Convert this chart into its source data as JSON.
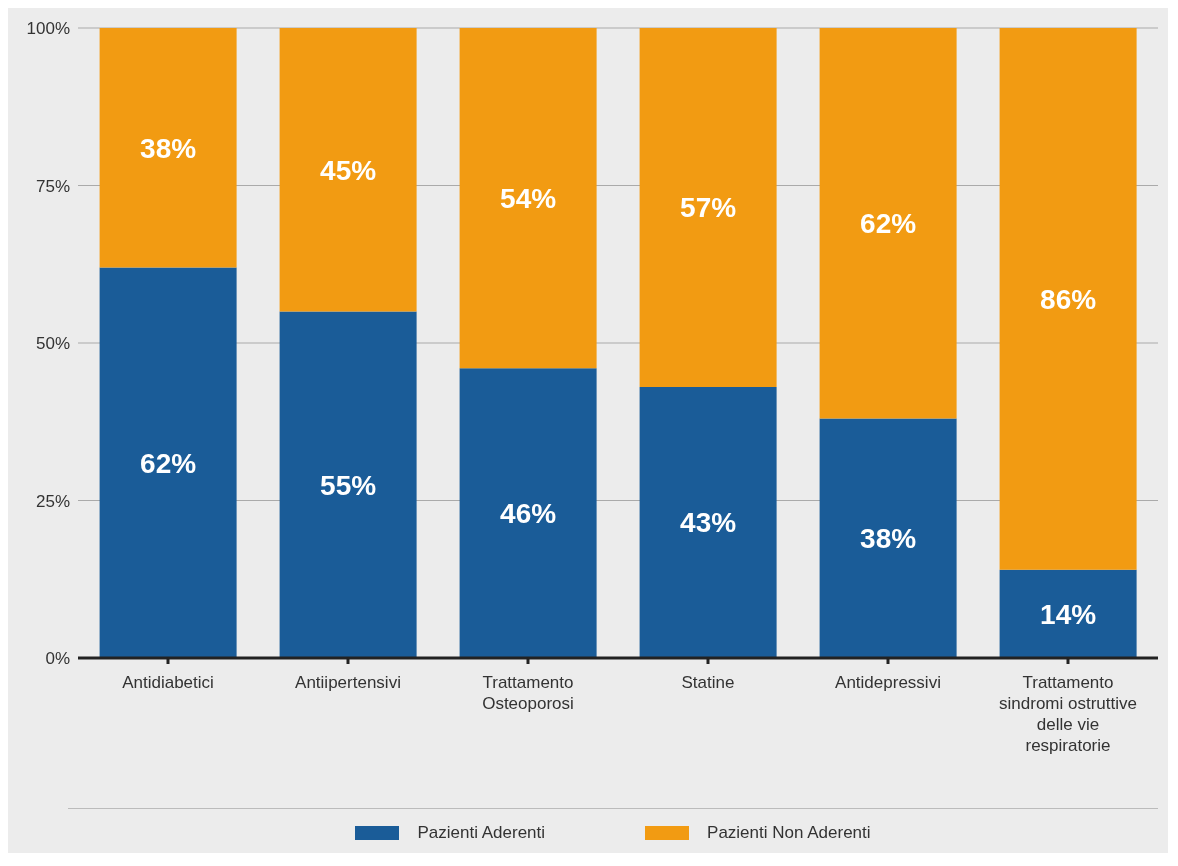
{
  "chart_data": {
    "type": "bar",
    "stacked": true,
    "categories": [
      "Antidiabetici",
      "Antiipertensivi",
      "Trattamento Osteoporosi",
      "Statine",
      "Antidepressivi",
      "Trattamento sindromi ostruttive delle vie respiratorie"
    ],
    "series": [
      {
        "name": "Pazienti Aderenti",
        "color": "#1a5c98",
        "values": [
          62,
          55,
          46,
          43,
          38,
          14
        ],
        "value_labels": [
          "62%",
          "55%",
          "46%",
          "43%",
          "38%",
          "14%"
        ]
      },
      {
        "name": "Pazienti Non Aderenti",
        "color": "#f29b12",
        "values": [
          38,
          45,
          54,
          57,
          62,
          86
        ],
        "value_labels": [
          "38%",
          "45%",
          "54%",
          "57%",
          "62%",
          "86%"
        ]
      }
    ],
    "ylim": [
      0,
      100
    ],
    "yticks": [
      {
        "value": 0,
        "label": "0%"
      },
      {
        "value": 25,
        "label": "25%"
      },
      {
        "value": 50,
        "label": "50%"
      },
      {
        "value": 75,
        "label": "75%"
      },
      {
        "value": 100,
        "label": "100%"
      }
    ],
    "grid": "y",
    "legend": "bottom"
  }
}
